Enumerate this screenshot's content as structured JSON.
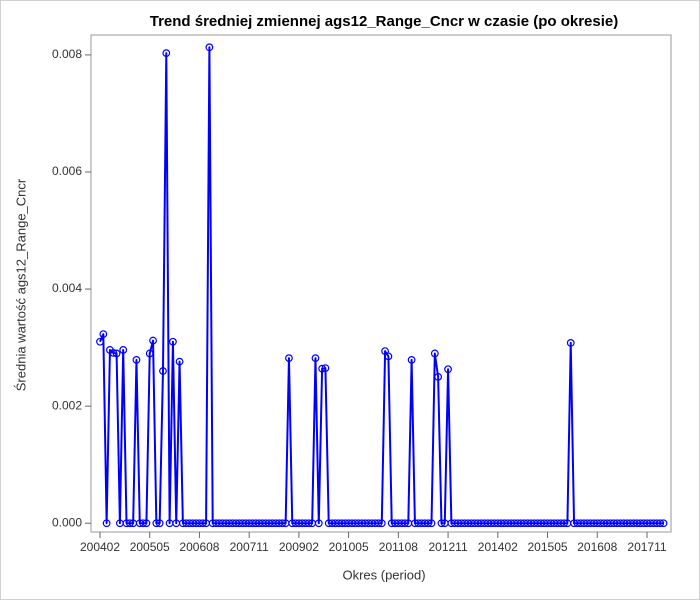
{
  "chart_data": {
    "type": "line",
    "title": "Trend średniej zmiennej ags12_Range_Cncr w czasie (po okresie)",
    "x_label": "Okres (period)",
    "y_label": "Średnia wartość ags12_Range_Cncr",
    "color": "#0000ff",
    "categories": [
      "200402",
      "200403",
      "200404",
      "200405",
      "200406",
      "200407",
      "200408",
      "200409",
      "200410",
      "200411",
      "200412",
      "200501",
      "200502",
      "200503",
      "200504",
      "200505",
      "200506",
      "200507",
      "200508",
      "200509",
      "200510",
      "200511",
      "200512",
      "200601",
      "200602",
      "200603",
      "200604",
      "200605",
      "200606",
      "200607",
      "200608",
      "200609",
      "200610",
      "200611",
      "200612",
      "200701",
      "200702",
      "200703",
      "200704",
      "200705",
      "200706",
      "200707",
      "200708",
      "200709",
      "200710",
      "200711",
      "200712",
      "200801",
      "200802",
      "200803",
      "200804",
      "200805",
      "200806",
      "200807",
      "200808",
      "200809",
      "200810",
      "200811",
      "200812",
      "200901",
      "200902",
      "200903",
      "200904",
      "200905",
      "200906",
      "200907",
      "200908",
      "200909",
      "200910",
      "200911",
      "200912",
      "201001",
      "201002",
      "201003",
      "201004",
      "201005",
      "201006",
      "201007",
      "201008",
      "201009",
      "201010",
      "201011",
      "201012",
      "201101",
      "201102",
      "201103",
      "201104",
      "201105",
      "201106",
      "201107",
      "201108",
      "201109",
      "201110",
      "201111",
      "201112",
      "201201",
      "201202",
      "201203",
      "201204",
      "201205",
      "201206",
      "201207",
      "201208",
      "201209",
      "201210",
      "201211",
      "201212",
      "201301",
      "201302",
      "201303",
      "201304",
      "201305",
      "201306",
      "201307",
      "201308",
      "201309",
      "201310",
      "201311",
      "201312",
      "201401",
      "201402",
      "201403",
      "201404",
      "201405",
      "201406",
      "201407",
      "201408",
      "201409",
      "201410",
      "201411",
      "201412",
      "201501",
      "201502",
      "201503",
      "201504",
      "201505",
      "201506",
      "201507",
      "201508",
      "201509",
      "201510",
      "201511",
      "201512",
      "201601",
      "201602",
      "201603",
      "201604",
      "201605",
      "201606",
      "201607",
      "201608",
      "201609",
      "201610",
      "201611",
      "201612",
      "201701",
      "201702",
      "201703",
      "201704",
      "201705",
      "201706",
      "201707",
      "201708",
      "201709",
      "201710",
      "201711",
      "201712",
      "201801",
      "201802",
      "201803",
      "201804"
    ],
    "values": [
      0.0031,
      0.00323,
      0,
      0.00296,
      0.00291,
      0.0029,
      0,
      0.00296,
      0,
      0,
      0,
      0.00279,
      0,
      0,
      0,
      0.0029,
      0.00312,
      0,
      0,
      0.0026,
      0.00803,
      0,
      0.0031,
      0,
      0.00276,
      0,
      0,
      0,
      0,
      0,
      0,
      0,
      0,
      0.00813,
      0,
      0,
      0,
      0,
      0,
      0,
      0,
      0,
      0,
      0,
      0,
      0,
      0,
      0,
      0,
      0,
      0,
      0,
      0,
      0,
      0,
      0,
      0,
      0.00282,
      0,
      0,
      0,
      0,
      0,
      0,
      0,
      0.00282,
      0,
      0.00264,
      0.00265,
      0,
      0,
      0,
      0,
      0,
      0,
      0,
      0,
      0,
      0,
      0,
      0,
      0,
      0,
      0,
      0,
      0,
      0.00294,
      0.00285,
      0,
      0,
      0,
      0,
      0,
      0,
      0.00279,
      0,
      0,
      0,
      0,
      0,
      0,
      0.0029,
      0.0025,
      0,
      0,
      0.00263,
      0,
      0,
      0,
      0,
      0,
      0,
      0,
      0,
      0,
      0,
      0,
      0,
      0,
      0,
      0,
      0,
      0,
      0,
      0,
      0,
      0,
      0,
      0,
      0,
      0,
      0,
      0,
      0,
      0,
      0,
      0,
      0,
      0,
      0,
      0,
      0,
      0.00308,
      0,
      0,
      0,
      0,
      0,
      0,
      0,
      0,
      0,
      0,
      0,
      0,
      0,
      0,
      0,
      0,
      0,
      0,
      0,
      0,
      0,
      0,
      0,
      0,
      0,
      0,
      0,
      0
    ],
    "xticks": [
      "200402",
      "200505",
      "200608",
      "200711",
      "200902",
      "201005",
      "201108",
      "201211",
      "201402",
      "201505",
      "201608",
      "201711"
    ],
    "ylim": [
      -0.00015,
      0.00834
    ],
    "yticks": [
      {
        "value": 0,
        "label": "0.000"
      },
      {
        "value": 0.002,
        "label": "0.002"
      },
      {
        "value": 0.004,
        "label": "0.004"
      },
      {
        "value": 0.006,
        "label": "0.006"
      },
      {
        "value": 0.008,
        "label": "0.008"
      }
    ]
  }
}
